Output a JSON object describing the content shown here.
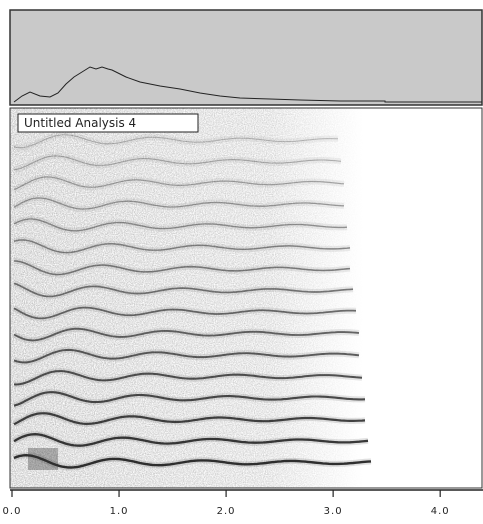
{
  "panel": {
    "label": "Untitled Analysis 4"
  },
  "axis": {
    "xlim": [
      0,
      4.4
    ],
    "xticks": [
      {
        "value": 0,
        "label": "0.0"
      },
      {
        "value": 1,
        "label": "1.0"
      },
      {
        "value": 2,
        "label": "2.0"
      },
      {
        "value": 3,
        "label": "3.0"
      },
      {
        "value": 4,
        "label": "4.0"
      }
    ]
  }
}
